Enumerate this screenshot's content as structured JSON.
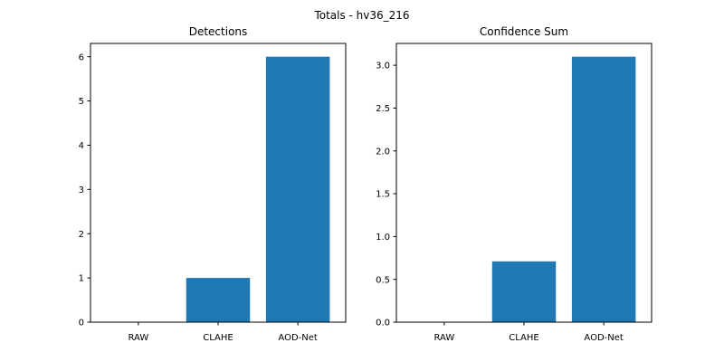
{
  "figure": {
    "suptitle": "Totals - hv36_216"
  },
  "chart_data": [
    {
      "type": "bar",
      "title": "Detections",
      "xlabel": "",
      "ylabel": "",
      "categories": [
        "RAW",
        "CLAHE",
        "AOD-Net"
      ],
      "values": [
        0,
        1,
        6
      ],
      "ylim": [
        0,
        6.3
      ],
      "yticks": [
        0,
        1,
        2,
        3,
        4,
        5,
        6
      ],
      "ytick_labels": [
        "0",
        "1",
        "2",
        "3",
        "4",
        "5",
        "6"
      ],
      "bar_color": "#1f77b4",
      "grid": false
    },
    {
      "type": "bar",
      "title": "Confidence Sum",
      "xlabel": "",
      "ylabel": "",
      "categories": [
        "RAW",
        "CLAHE",
        "AOD-Net"
      ],
      "values": [
        0,
        0.71,
        3.1
      ],
      "ylim": [
        0,
        3.255
      ],
      "yticks": [
        0,
        0.5,
        1.0,
        1.5,
        2.0,
        2.5,
        3.0
      ],
      "ytick_labels": [
        "0.0",
        "0.5",
        "1.0",
        "1.5",
        "2.0",
        "2.5",
        "3.0"
      ],
      "bar_color": "#1f77b4",
      "grid": false
    }
  ]
}
